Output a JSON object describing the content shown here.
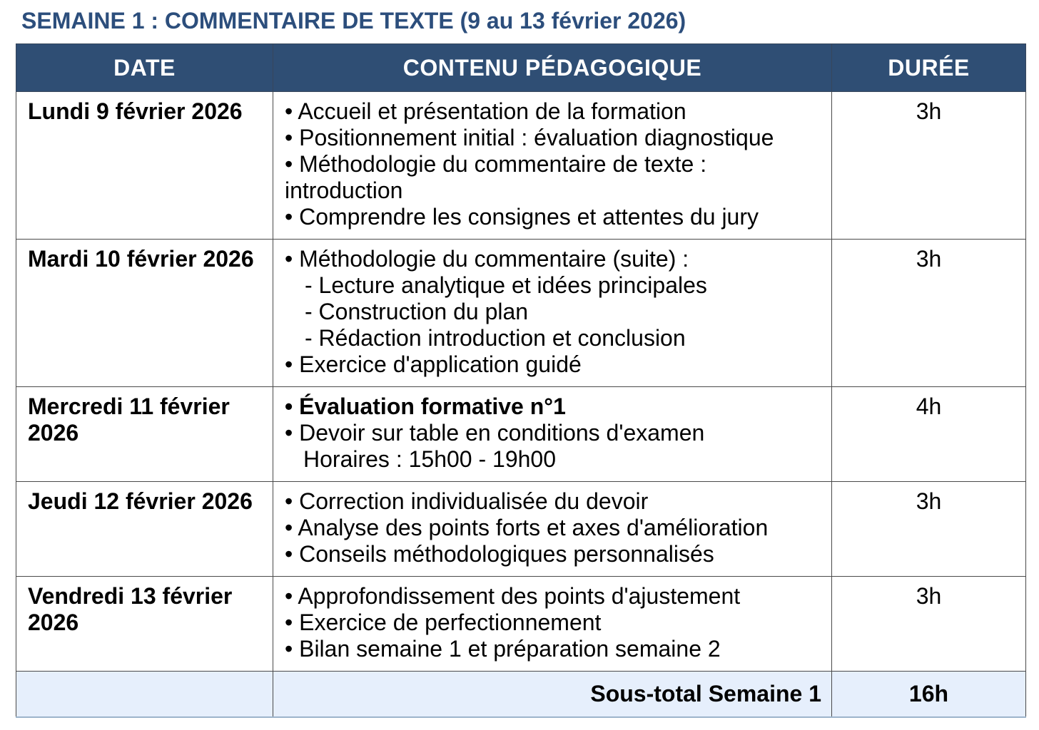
{
  "title": "SEMAINE 1 : COMMENTAIRE DE TEXTE (9 au 13 février 2026)",
  "colors": {
    "header_bg": "#2F4E74",
    "header_text": "#FFFFFF",
    "title_text": "#2C4E7C",
    "footer_bg": "#E6EFFC",
    "border": "#4A4A4A",
    "footer_bottom_border": "#9DB4CB",
    "body_text": "#000000"
  },
  "table": {
    "headers": {
      "date": "DATE",
      "content": "CONTENU PÉDAGOGIQUE",
      "duration": "DURÉE"
    },
    "rows": [
      {
        "date": "Lundi 9 février 2026",
        "duration": "3h",
        "items": [
          {
            "kind": "bullet",
            "text": "• Accueil et présentation de la formation"
          },
          {
            "kind": "bullet",
            "text": "• Positionnement initial : évaluation diagnostique"
          },
          {
            "kind": "bullet",
            "text": "• Méthodologie du commentaire de texte :"
          },
          {
            "kind": "plain",
            "text": "introduction"
          },
          {
            "kind": "bullet",
            "text": "• Comprendre les consignes et attentes du jury"
          }
        ]
      },
      {
        "date": "Mardi 10 février 2026",
        "duration": "3h",
        "items": [
          {
            "kind": "bullet",
            "text": "• Méthodologie du commentaire (suite) :"
          },
          {
            "kind": "sub",
            "text": "- Lecture analytique et idées principales"
          },
          {
            "kind": "sub",
            "text": "- Construction du plan"
          },
          {
            "kind": "sub",
            "text": "- Rédaction introduction et conclusion"
          },
          {
            "kind": "bullet",
            "text": "• Exercice d'application guidé"
          }
        ]
      },
      {
        "date": "Mercredi 11 février 2026",
        "duration": "4h",
        "items": [
          {
            "kind": "bullet",
            "bold": true,
            "text": "• Évaluation formative n°1"
          },
          {
            "kind": "bullet",
            "text": "• Devoir sur table en conditions d'examen"
          },
          {
            "kind": "cont",
            "text": "Horaires : 15h00 - 19h00"
          }
        ]
      },
      {
        "date": "Jeudi 12 février 2026",
        "duration": "3h",
        "items": [
          {
            "kind": "bullet",
            "text": "• Correction individualisée du devoir"
          },
          {
            "kind": "bullet",
            "text": "• Analyse des points forts et axes d'amélioration"
          },
          {
            "kind": "bullet",
            "text": "• Conseils méthodologiques personnalisés"
          }
        ]
      },
      {
        "date": "Vendredi 13 février 2026",
        "duration": "3h",
        "items": [
          {
            "kind": "bullet",
            "text": "• Approfondissement des points d'ajustement"
          },
          {
            "kind": "bullet",
            "text": "• Exercice de perfectionnement"
          },
          {
            "kind": "bullet",
            "text": "• Bilan semaine 1 et préparation semaine 2"
          }
        ]
      }
    ],
    "footer": {
      "label": "Sous-total Semaine 1",
      "duration": "16h"
    }
  }
}
